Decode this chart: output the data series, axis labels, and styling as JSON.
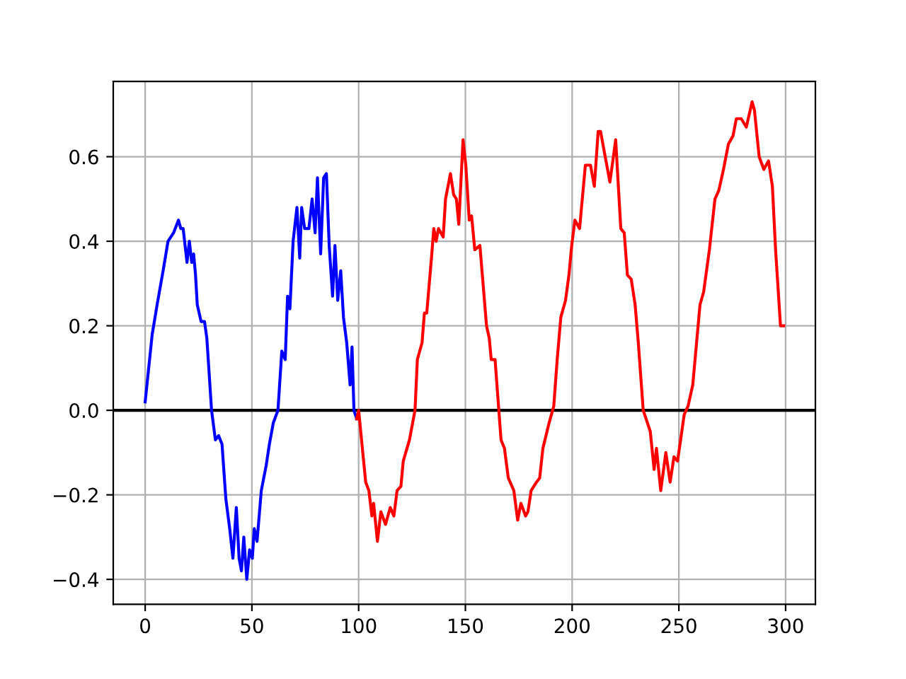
{
  "chart_data": {
    "type": "line",
    "xlim": [
      -14.95,
      313.95
    ],
    "ylim": [
      -0.459,
      0.778
    ],
    "xticks": [
      0,
      50,
      100,
      150,
      200,
      250,
      300
    ],
    "yticks": [
      {
        "value": -0.4,
        "label": "−0.4"
      },
      {
        "value": -0.2,
        "label": "−0.2"
      },
      {
        "value": 0,
        "label": "0.0"
      },
      {
        "value": 0.2,
        "label": "0.2"
      },
      {
        "value": 0.4,
        "label": "0.4"
      },
      {
        "value": 0.6,
        "label": "0.6"
      }
    ],
    "grid": true,
    "marker": "none",
    "line_style": "solid",
    "ref_lines": [
      {
        "axis": "y",
        "value": 0,
        "color": "#000000"
      }
    ],
    "series": [
      {
        "color": "#0000ff",
        "x": [
          0,
          3.3,
          5.6,
          8.4,
          10.7,
          13.3,
          15.6,
          16.7,
          17.8,
          19.6,
          20.7,
          21.8,
          22.7,
          23.6,
          24.4,
          26.2,
          27.8,
          28.9,
          31.1,
          32.9,
          34.4,
          36,
          37.8,
          39.6,
          41.1,
          42.7,
          44,
          45.1,
          46.2,
          47.6,
          48.9,
          50.2,
          51.1,
          52.4,
          54.4,
          56.7,
          58.2,
          60,
          62.2,
          64,
          65.6,
          66.7,
          67.8,
          69.3,
          71.1,
          72.4,
          73.3,
          74.7,
          76.7,
          78.2,
          79.6,
          80.7,
          82.2,
          83.6,
          84.9,
          86.2,
          87.8,
          88.9,
          90.2,
          91.6,
          92.9,
          94.4,
          96,
          96.9,
          97.8,
          99.1
        ],
        "values": [
          0.02,
          0.18,
          0.25,
          0.33,
          0.4,
          0.42,
          0.45,
          0.43,
          0.43,
          0.35,
          0.4,
          0.35,
          0.37,
          0.32,
          0.25,
          0.21,
          0.21,
          0.17,
          0,
          -0.07,
          -0.06,
          -0.08,
          -0.21,
          -0.28,
          -0.35,
          -0.23,
          -0.35,
          -0.38,
          -0.3,
          -0.4,
          -0.33,
          -0.35,
          -0.28,
          -0.31,
          -0.19,
          -0.13,
          -0.08,
          -0.03,
          0,
          0.14,
          0.12,
          0.27,
          0.24,
          0.4,
          0.48,
          0.36,
          0.48,
          0.43,
          0.43,
          0.5,
          0.42,
          0.55,
          0.37,
          0.55,
          0.56,
          0.39,
          0.27,
          0.39,
          0.26,
          0.33,
          0.22,
          0.16,
          0.06,
          0.15,
          0,
          -0.02
        ]
      },
      {
        "color": "#ff0000",
        "x": [
          99.1,
          100,
          103.3,
          104.8,
          106.2,
          107,
          108.8,
          110.4,
          112.6,
          114.8,
          116.5,
          118,
          119.8,
          120.9,
          123.8,
          126.4,
          127.5,
          129.7,
          130.8,
          131.9,
          134.1,
          135.2,
          136.3,
          137.4,
          139.6,
          140.7,
          143,
          144.5,
          145.8,
          146.9,
          148.9,
          150.2,
          151.8,
          152.9,
          154.4,
          156.8,
          159.9,
          161.2,
          162.1,
          163.9,
          166.7,
          168.3,
          170.1,
          172.7,
          174.5,
          176,
          178.2,
          179.3,
          180.8,
          183.3,
          184.8,
          186.3,
          189.2,
          191.4,
          193,
          194.7,
          196.9,
          198.5,
          199.8,
          201.3,
          203.5,
          206.2,
          208.6,
          210.4,
          212.2,
          213.3,
          215.5,
          217.7,
          220.4,
          222.8,
          224.4,
          225.9,
          227.7,
          229.5,
          231,
          233.3,
          236.6,
          238.4,
          239.5,
          241.5,
          243.9,
          245.9,
          247.7,
          249.4,
          252.5,
          254.3,
          256.5,
          259.9,
          261.6,
          264.3,
          266.9,
          268.7,
          270.9,
          273.2,
          275.4,
          276.9,
          279.2,
          281.6,
          284.3,
          285.4,
          287.6,
          289.8,
          292,
          293.8,
          295.3,
          297.6,
          299.1
        ],
        "values": [
          -0.02,
          0,
          -0.17,
          -0.19,
          -0.25,
          -0.22,
          -0.31,
          -0.24,
          -0.27,
          -0.23,
          -0.25,
          -0.19,
          -0.18,
          -0.12,
          -0.07,
          0,
          0.12,
          0.16,
          0.23,
          0.23,
          0.36,
          0.43,
          0.4,
          0.43,
          0.41,
          0.5,
          0.56,
          0.51,
          0.5,
          0.44,
          0.64,
          0.58,
          0.45,
          0.46,
          0.38,
          0.39,
          0.2,
          0.17,
          0.12,
          0.12,
          -0.07,
          -0.09,
          -0.16,
          -0.19,
          -0.26,
          -0.22,
          -0.25,
          -0.24,
          -0.19,
          -0.17,
          -0.16,
          -0.09,
          -0.03,
          0.01,
          0.12,
          0.22,
          0.26,
          0.32,
          0.39,
          0.45,
          0.43,
          0.58,
          0.58,
          0.53,
          0.66,
          0.66,
          0.6,
          0.54,
          0.64,
          0.43,
          0.42,
          0.32,
          0.31,
          0.25,
          0.16,
          0,
          -0.05,
          -0.14,
          -0.09,
          -0.19,
          -0.1,
          -0.17,
          -0.11,
          -0.12,
          -0.01,
          0.01,
          0.06,
          0.25,
          0.28,
          0.38,
          0.5,
          0.52,
          0.57,
          0.63,
          0.65,
          0.69,
          0.69,
          0.67,
          0.73,
          0.71,
          0.6,
          0.57,
          0.59,
          0.53,
          0.38,
          0.2,
          0.2
        ]
      }
    ]
  }
}
